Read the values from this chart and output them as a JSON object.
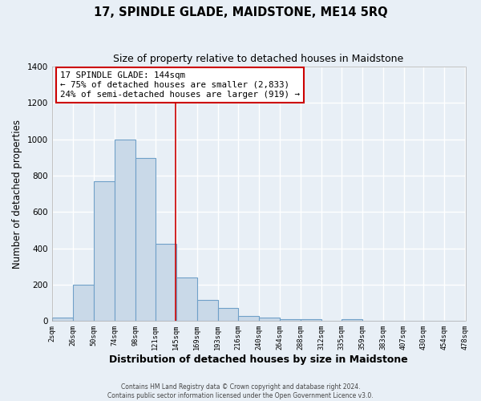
{
  "title": "17, SPINDLE GLADE, MAIDSTONE, ME14 5RQ",
  "subtitle": "Size of property relative to detached houses in Maidstone",
  "xlabel": "Distribution of detached houses by size in Maidstone",
  "ylabel": "Number of detached properties",
  "bin_edges": [
    2,
    26,
    50,
    74,
    98,
    121,
    145,
    169,
    193,
    216,
    240,
    264,
    288,
    312,
    335,
    359,
    383,
    407,
    430,
    454,
    478
  ],
  "counts": [
    20,
    200,
    770,
    1000,
    895,
    425,
    240,
    115,
    70,
    25,
    20,
    10,
    8,
    0,
    10,
    0,
    0,
    0,
    0,
    0
  ],
  "bar_color": "#c9d9e8",
  "bar_edge_color": "#6fa0c8",
  "vline_x": 144,
  "vline_color": "#cc0000",
  "annotation_title": "17 SPINDLE GLADE: 144sqm",
  "annotation_line1": "← 75% of detached houses are smaller (2,833)",
  "annotation_line2": "24% of semi-detached houses are larger (919) →",
  "annotation_box_color": "#ffffff",
  "annotation_border_color": "#cc0000",
  "ylim": [
    0,
    1400
  ],
  "tick_labels": [
    "2sqm",
    "26sqm",
    "50sqm",
    "74sqm",
    "98sqm",
    "121sqm",
    "145sqm",
    "169sqm",
    "193sqm",
    "216sqm",
    "240sqm",
    "264sqm",
    "288sqm",
    "312sqm",
    "335sqm",
    "359sqm",
    "383sqm",
    "407sqm",
    "430sqm",
    "454sqm",
    "478sqm"
  ],
  "footer1": "Contains HM Land Registry data © Crown copyright and database right 2024.",
  "footer2": "Contains public sector information licensed under the Open Government Licence v3.0.",
  "bg_color": "#e8eff6",
  "plot_bg_color": "#e8eff6",
  "grid_color": "#ffffff"
}
